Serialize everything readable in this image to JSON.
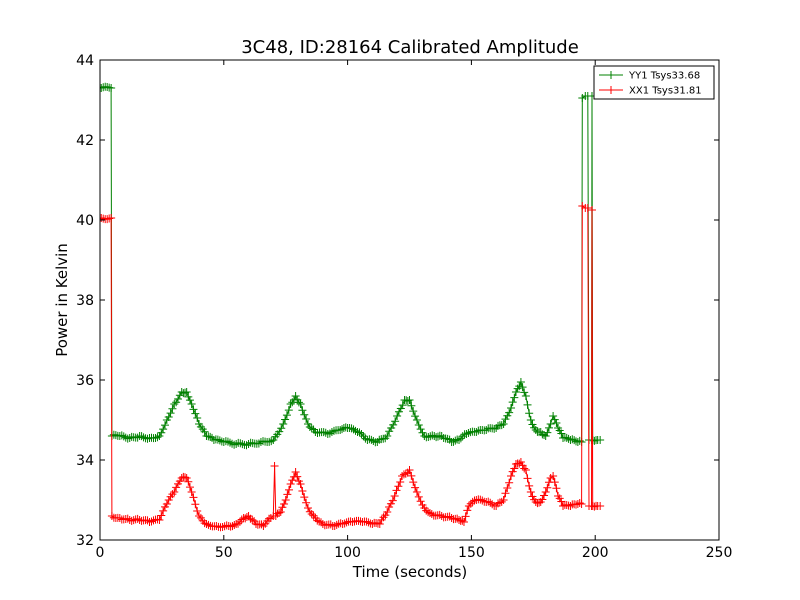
{
  "chart_data": {
    "type": "line",
    "title": "3C48, ID:28164 Calibrated Amplitude",
    "xlabel": "Time (seconds)",
    "ylabel": "Power in Kelvin",
    "xlim": [
      0,
      250
    ],
    "ylim": [
      32,
      44
    ],
    "xticks": [
      0,
      50,
      100,
      150,
      200,
      250
    ],
    "yticks": [
      32,
      34,
      36,
      38,
      40,
      42,
      44
    ],
    "grid": false,
    "legend_position": "top-right",
    "marker": "+",
    "series": [
      {
        "name": "YY1 Tsys33.68",
        "color": "#008000",
        "points": [
          [
            0.5,
            43.3
          ],
          [
            4.5,
            43.3
          ],
          [
            4.8,
            34.6
          ],
          [
            8,
            34.6
          ],
          [
            12,
            34.55
          ],
          [
            16,
            34.6
          ],
          [
            20,
            34.55
          ],
          [
            24,
            34.6
          ],
          [
            27,
            35.0
          ],
          [
            30,
            35.4
          ],
          [
            33,
            35.7
          ],
          [
            35,
            35.7
          ],
          [
            37,
            35.4
          ],
          [
            40,
            34.9
          ],
          [
            43,
            34.6
          ],
          [
            46,
            34.5
          ],
          [
            50,
            34.45
          ],
          [
            55,
            34.4
          ],
          [
            60,
            34.4
          ],
          [
            65,
            34.45
          ],
          [
            70,
            34.5
          ],
          [
            74,
            34.9
          ],
          [
            77,
            35.4
          ],
          [
            79,
            35.6
          ],
          [
            81,
            35.4
          ],
          [
            84,
            34.9
          ],
          [
            87,
            34.7
          ],
          [
            92,
            34.65
          ],
          [
            97,
            34.75
          ],
          [
            100,
            34.8
          ],
          [
            104,
            34.7
          ],
          [
            108,
            34.5
          ],
          [
            112,
            34.45
          ],
          [
            116,
            34.6
          ],
          [
            120,
            35.1
          ],
          [
            123,
            35.5
          ],
          [
            125,
            35.5
          ],
          [
            128,
            35.0
          ],
          [
            131,
            34.6
          ],
          [
            135,
            34.6
          ],
          [
            138,
            34.6
          ],
          [
            142,
            34.45
          ],
          [
            145,
            34.5
          ],
          [
            148,
            34.65
          ],
          [
            152,
            34.7
          ],
          [
            156,
            34.75
          ],
          [
            160,
            34.8
          ],
          [
            163,
            34.9
          ],
          [
            166,
            35.3
          ],
          [
            168,
            35.7
          ],
          [
            170,
            35.95
          ],
          [
            172,
            35.6
          ],
          [
            174,
            35.0
          ],
          [
            176,
            34.75
          ],
          [
            178,
            34.7
          ],
          [
            180,
            34.6
          ],
          [
            182,
            34.9
          ],
          [
            183,
            35.1
          ],
          [
            185,
            34.8
          ],
          [
            187,
            34.55
          ],
          [
            190,
            34.5
          ],
          [
            193,
            34.45
          ],
          [
            194.5,
            34.45
          ],
          [
            194.8,
            43.05
          ],
          [
            196,
            43.1
          ],
          [
            197,
            43.1
          ],
          [
            197.5,
            34.5
          ],
          [
            198.5,
            34.5
          ],
          [
            198.7,
            43.1
          ],
          [
            199,
            34.5
          ],
          [
            201,
            34.5
          ],
          [
            202,
            34.5
          ]
        ]
      },
      {
        "name": "XX1 Tsys31.81",
        "color": "#ff0000",
        "points": [
          [
            0.5,
            40.05
          ],
          [
            4.5,
            40.05
          ],
          [
            4.8,
            32.6
          ],
          [
            8,
            32.55
          ],
          [
            12,
            32.5
          ],
          [
            16,
            32.5
          ],
          [
            20,
            32.45
          ],
          [
            24,
            32.5
          ],
          [
            27,
            32.9
          ],
          [
            30,
            33.2
          ],
          [
            33,
            33.55
          ],
          [
            35,
            33.55
          ],
          [
            37,
            33.2
          ],
          [
            40,
            32.6
          ],
          [
            43,
            32.4
          ],
          [
            47,
            32.35
          ],
          [
            52,
            32.35
          ],
          [
            55,
            32.4
          ],
          [
            58,
            32.55
          ],
          [
            60,
            32.6
          ],
          [
            63,
            32.4
          ],
          [
            66,
            32.35
          ],
          [
            69,
            32.55
          ],
          [
            70,
            32.6
          ],
          [
            70.5,
            33.85
          ],
          [
            71,
            32.6
          ],
          [
            73,
            32.7
          ],
          [
            75,
            33.0
          ],
          [
            77,
            33.4
          ],
          [
            79,
            33.7
          ],
          [
            81,
            33.4
          ],
          [
            84,
            32.8
          ],
          [
            87,
            32.55
          ],
          [
            90,
            32.4
          ],
          [
            94,
            32.35
          ],
          [
            98,
            32.4
          ],
          [
            102,
            32.45
          ],
          [
            106,
            32.45
          ],
          [
            110,
            32.4
          ],
          [
            113,
            32.4
          ],
          [
            116,
            32.7
          ],
          [
            119,
            33.1
          ],
          [
            122,
            33.6
          ],
          [
            125,
            33.75
          ],
          [
            128,
            33.2
          ],
          [
            131,
            32.8
          ],
          [
            134,
            32.65
          ],
          [
            138,
            32.6
          ],
          [
            142,
            32.55
          ],
          [
            145,
            32.5
          ],
          [
            147,
            32.45
          ],
          [
            149,
            32.85
          ],
          [
            152,
            33.0
          ],
          [
            156,
            32.95
          ],
          [
            160,
            32.85
          ],
          [
            163,
            33.0
          ],
          [
            166,
            33.6
          ],
          [
            168,
            33.9
          ],
          [
            170,
            33.95
          ],
          [
            172,
            33.75
          ],
          [
            174,
            33.2
          ],
          [
            176,
            32.95
          ],
          [
            178,
            32.95
          ],
          [
            180,
            33.2
          ],
          [
            182,
            33.55
          ],
          [
            183,
            33.6
          ],
          [
            185,
            33.1
          ],
          [
            187,
            32.85
          ],
          [
            190,
            32.85
          ],
          [
            193,
            32.9
          ],
          [
            194.5,
            32.9
          ],
          [
            194.8,
            40.35
          ],
          [
            196,
            40.3
          ],
          [
            197,
            40.3
          ],
          [
            197.5,
            32.85
          ],
          [
            198.5,
            32.85
          ],
          [
            198.7,
            40.25
          ],
          [
            199,
            32.85
          ],
          [
            201,
            32.85
          ],
          [
            202,
            32.85
          ]
        ]
      }
    ]
  }
}
